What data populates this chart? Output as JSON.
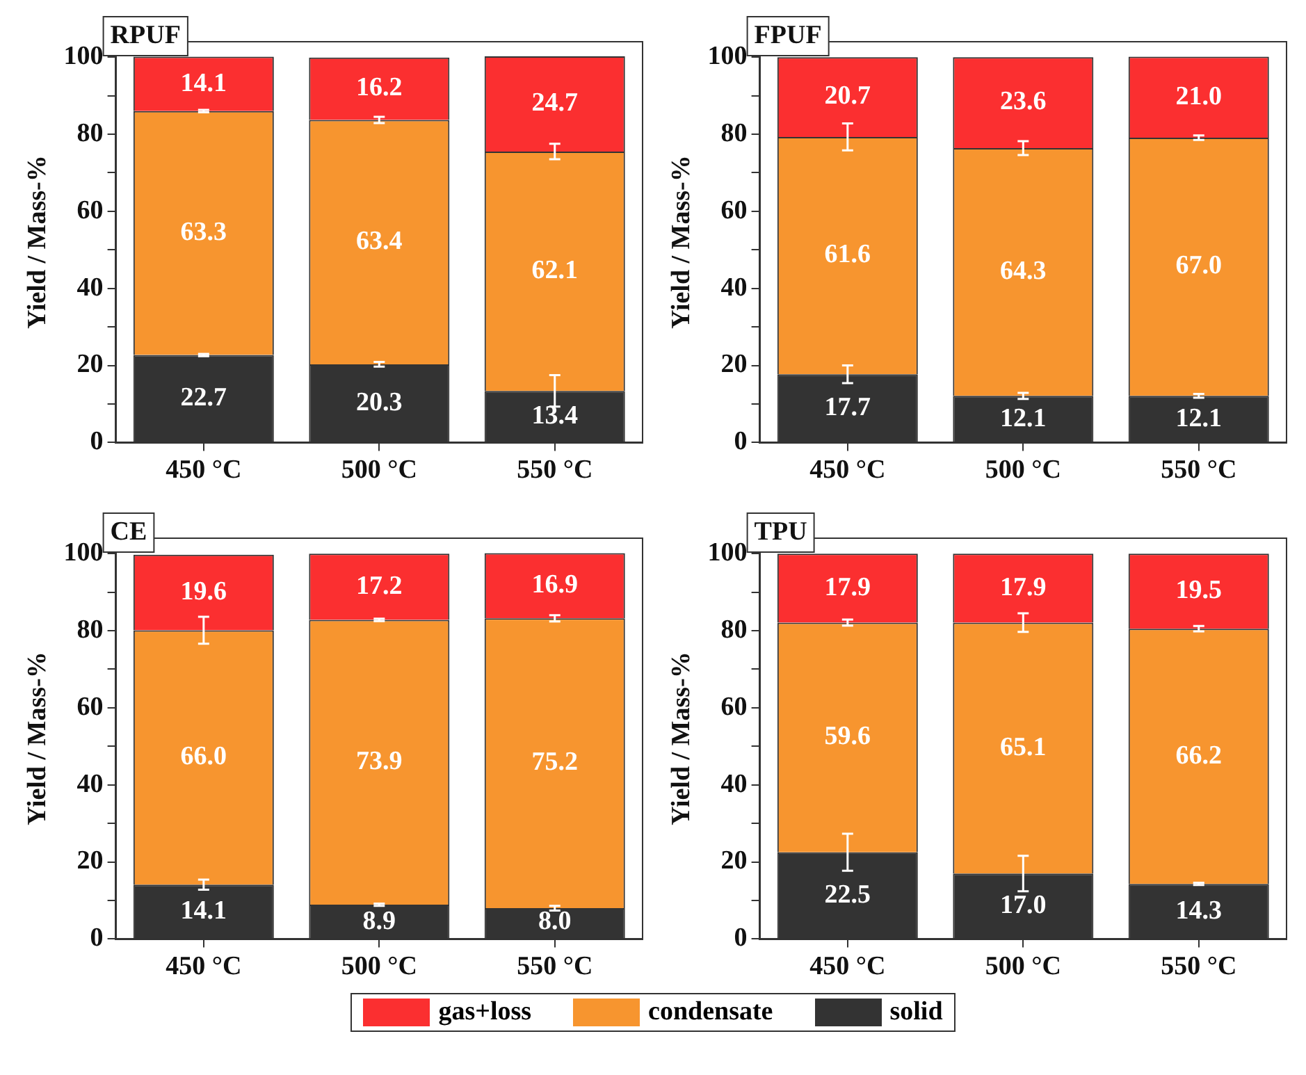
{
  "chart_data": [
    {
      "type": "bar",
      "title": "RPUF",
      "ylabel": "Yield / Mass-%",
      "categories": [
        "450 °C",
        "500 °C",
        "550 °C"
      ],
      "stacked": true,
      "grid": false,
      "legend": "bottom",
      "ylim": [
        0,
        104
      ],
      "yticks": [
        0,
        {
          "value": 10,
          "label": null
        },
        20,
        {
          "value": 30,
          "label": null
        },
        40,
        {
          "value": 50,
          "label": null
        },
        60,
        {
          "value": 70,
          "label": null
        },
        80,
        {
          "value": 90,
          "label": null
        },
        100
      ],
      "series": [
        {
          "name": "solid",
          "color": "#333333",
          "values": [
            22.7,
            20.3,
            13.4
          ],
          "value_labels": [
            "22.7",
            "20.3",
            "13.4"
          ],
          "errors": [
            0.3,
            0.6,
            4.1
          ]
        },
        {
          "name": "condensate",
          "color": "#f7952f",
          "values": [
            63.3,
            63.4,
            62.1
          ],
          "value_labels": [
            "63.3",
            "63.4",
            "62.1"
          ],
          "errors": [
            0.3,
            0.8,
            2.0
          ]
        },
        {
          "name": "gas+loss",
          "color": "#fb2f30",
          "values": [
            14.1,
            16.2,
            24.7
          ],
          "value_labels": [
            "14.1",
            "16.2",
            "24.7"
          ]
        }
      ]
    },
    {
      "type": "bar",
      "title": "FPUF",
      "ylabel": "Yield / Mass-%",
      "categories": [
        "450 °C",
        "500 °C",
        "550 °C"
      ],
      "stacked": true,
      "grid": false,
      "legend": "bottom",
      "ylim": [
        0,
        104
      ],
      "yticks": [
        0,
        {
          "value": 10,
          "label": null
        },
        20,
        {
          "value": 30,
          "label": null
        },
        40,
        {
          "value": 50,
          "label": null
        },
        60,
        {
          "value": 70,
          "label": null
        },
        80,
        {
          "value": 90,
          "label": null
        },
        100
      ],
      "series": [
        {
          "name": "solid",
          "color": "#333333",
          "values": [
            17.7,
            12.1,
            12.1
          ],
          "value_labels": [
            "17.7",
            "12.1",
            "12.1"
          ],
          "errors": [
            2.3,
            0.8,
            0.5
          ]
        },
        {
          "name": "condensate",
          "color": "#f7952f",
          "values": [
            61.6,
            64.3,
            67.0
          ],
          "value_labels": [
            "61.6",
            "64.3",
            "67.0"
          ],
          "errors": [
            3.5,
            1.8,
            0.6
          ]
        },
        {
          "name": "gas+loss",
          "color": "#fb2f30",
          "values": [
            20.7,
            23.6,
            21.0
          ],
          "value_labels": [
            "20.7",
            "23.6",
            "21.0"
          ]
        }
      ]
    },
    {
      "type": "bar",
      "title": "CE",
      "ylabel": "Yield / Mass-%",
      "categories": [
        "450 °C",
        "500 °C",
        "550 °C"
      ],
      "stacked": true,
      "grid": false,
      "legend": "bottom",
      "ylim": [
        0,
        104
      ],
      "yticks": [
        0,
        {
          "value": 10,
          "label": null
        },
        20,
        {
          "value": 30,
          "label": null
        },
        40,
        {
          "value": 50,
          "label": null
        },
        60,
        {
          "value": 70,
          "label": null
        },
        80,
        {
          "value": 90,
          "label": null
        },
        100
      ],
      "series": [
        {
          "name": "solid",
          "color": "#333333",
          "values": [
            14.1,
            8.9,
            8.0
          ],
          "value_labels": [
            "14.1",
            "8.9",
            "8.0"
          ],
          "errors": [
            1.3,
            0.3,
            0.6
          ]
        },
        {
          "name": "condensate",
          "color": "#f7952f",
          "values": [
            66.0,
            73.9,
            75.2
          ],
          "value_labels": [
            "66.0",
            "73.9",
            "75.2"
          ],
          "errors": [
            3.5,
            0.3,
            0.8
          ]
        },
        {
          "name": "gas+loss",
          "color": "#fb2f30",
          "values": [
            19.6,
            17.2,
            16.9
          ],
          "value_labels": [
            "19.6",
            "17.2",
            "16.9"
          ]
        }
      ]
    },
    {
      "type": "bar",
      "title": "TPU",
      "ylabel": "Yield / Mass-%",
      "categories": [
        "450 °C",
        "500 °C",
        "550 °C"
      ],
      "stacked": true,
      "grid": false,
      "legend": "bottom",
      "ylim": [
        0,
        104
      ],
      "yticks": [
        0,
        {
          "value": 10,
          "label": null
        },
        20,
        {
          "value": 30,
          "label": null
        },
        40,
        {
          "value": 50,
          "label": null
        },
        60,
        {
          "value": 70,
          "label": null
        },
        80,
        {
          "value": 90,
          "label": null
        },
        100
      ],
      "series": [
        {
          "name": "solid",
          "color": "#333333",
          "values": [
            22.5,
            17.0,
            14.3
          ],
          "value_labels": [
            "22.5",
            "17.0",
            "14.3"
          ],
          "errors": [
            4.8,
            4.6,
            0.3
          ]
        },
        {
          "name": "condensate",
          "color": "#f7952f",
          "values": [
            59.6,
            65.1,
            66.2
          ],
          "value_labels": [
            "59.6",
            "65.1",
            "66.2"
          ],
          "errors": [
            0.8,
            2.4,
            0.7
          ]
        },
        {
          "name": "gas+loss",
          "color": "#fb2f30",
          "values": [
            17.9,
            17.9,
            19.5
          ],
          "value_labels": [
            "17.9",
            "17.9",
            "19.5"
          ]
        }
      ]
    }
  ]
}
